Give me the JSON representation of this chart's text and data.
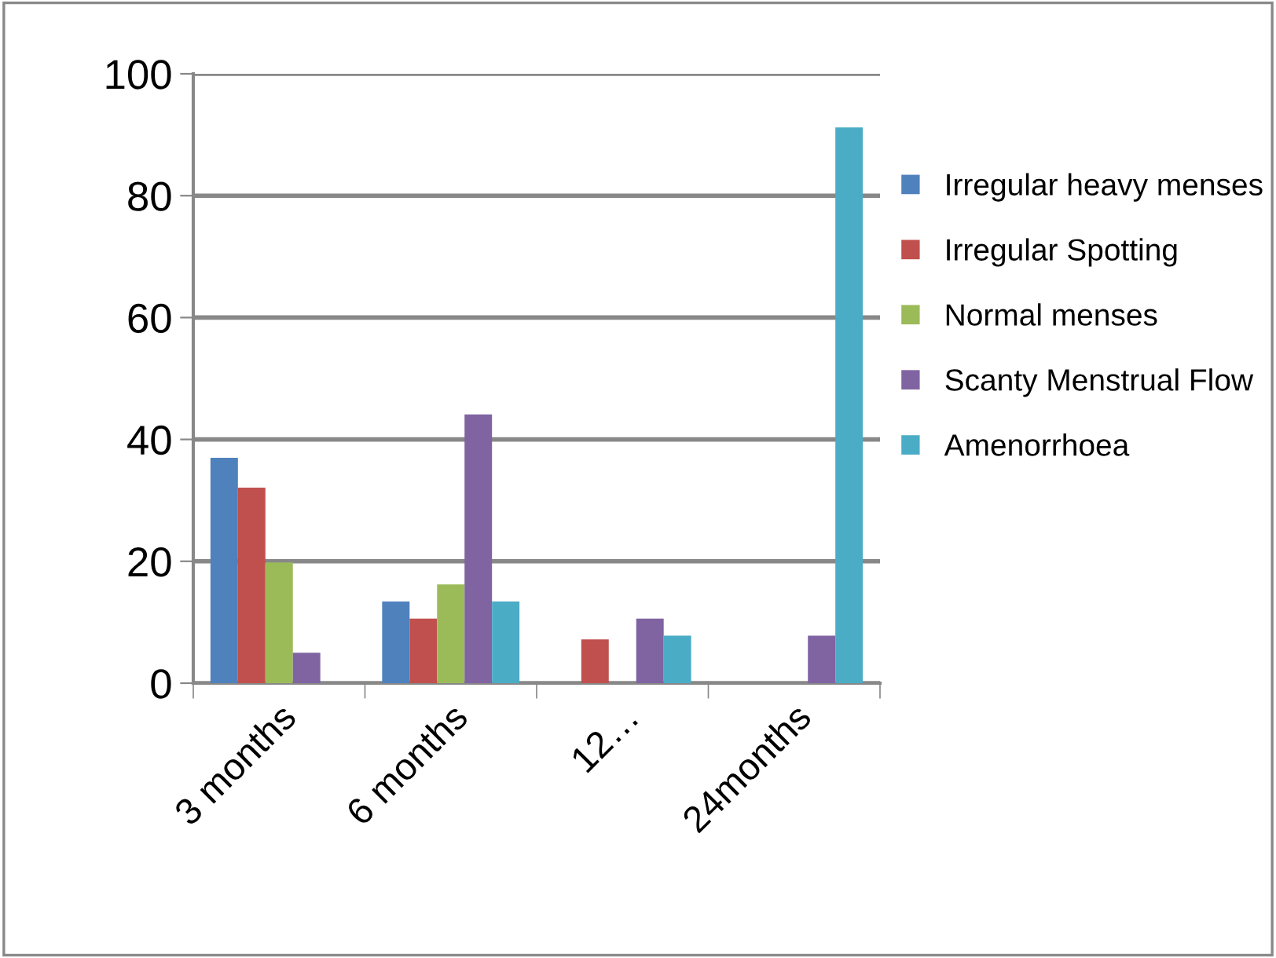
{
  "chart_data": {
    "type": "bar",
    "categories": [
      "3 months",
      "6 months",
      "12…",
      "24months"
    ],
    "series": [
      {
        "name": "Irregular heavy menses",
        "color": "#4f81bd",
        "values": [
          37.0,
          13.4,
          null,
          null
        ]
      },
      {
        "name": "Irregular Spotting",
        "color": "#c0504d",
        "values": [
          32.1,
          10.6,
          7.2,
          null
        ]
      },
      {
        "name": "Normal menses",
        "color": "#9bbb59",
        "values": [
          19.8,
          16.2,
          null,
          null
        ]
      },
      {
        "name": "Scanty Menstrual Flow",
        "color": "#8064a2",
        "values": [
          5.0,
          44.1,
          10.6,
          7.8
        ]
      },
      {
        "name": "Amenorrhoea",
        "color": "#4bacc6",
        "values": [
          null,
          13.4,
          7.8,
          91.2
        ]
      }
    ],
    "ylim": [
      0,
      100
    ],
    "yticks": [
      0,
      20,
      40,
      60,
      80,
      100
    ],
    "grid": "y",
    "legend": "right"
  }
}
